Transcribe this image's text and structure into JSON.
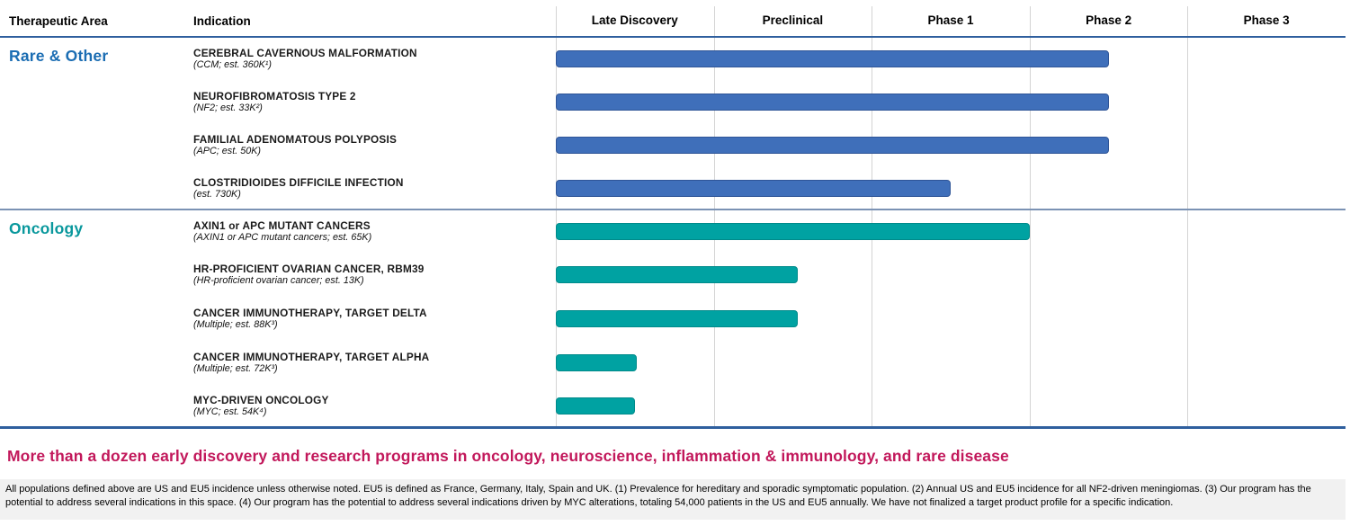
{
  "header": {
    "therapeutic_area": "Therapeutic Area",
    "indication": "Indication",
    "phases": [
      "Late Discovery",
      "Preclinical",
      "Phase 1",
      "Phase 2",
      "Phase 3"
    ]
  },
  "chart_data": {
    "type": "bar",
    "title": "Drug development pipeline by therapeutic area and phase",
    "phase_scale_note": "phase_end is measured in phase-column units: 1=end of Late Discovery, 2=end of Preclinical, 3=end of Phase 1, 4=end of Phase 2, 5=end of Phase 3",
    "sections": [
      {
        "name": "Rare & Other",
        "color": "#1b6db3",
        "bar_color": "#3f6fba",
        "bar_border": "#2f5597",
        "programs": [
          {
            "indication": "CEREBRAL CAVERNOUS MALFORMATION",
            "detail": "(CCM; est. 360K¹)",
            "phase_end": 3.5
          },
          {
            "indication": "NEUROFIBROMATOSIS TYPE 2",
            "detail": "(NF2; est. 33K²)",
            "phase_end": 3.5
          },
          {
            "indication": "FAMILIAL ADENOMATOUS POLYPOSIS",
            "detail": "(APC; est. 50K)",
            "phase_end": 3.5
          },
          {
            "indication": "CLOSTRIDIOIDES DIFFICILE INFECTION",
            "detail": "(est. 730K)",
            "phase_end": 2.5
          }
        ]
      },
      {
        "name": "Oncology",
        "color": "#0a989d",
        "bar_color": "#00a2a2",
        "bar_border": "#008a8a",
        "programs": [
          {
            "indication": "AXIN1 or APC MUTANT CANCERS",
            "detail": "(AXIN1 or APC mutant cancers; est. 65K)",
            "phase_end": 3.0
          },
          {
            "indication": "HR-PROFICIENT OVARIAN CANCER, RBM39",
            "detail": "(HR-proficient ovarian cancer; est. 13K)",
            "phase_end": 1.53
          },
          {
            "indication": "CANCER IMMUNOTHERAPY, TARGET DELTA",
            "detail": "(Multiple; est. 88K³)",
            "phase_end": 1.53
          },
          {
            "indication": "CANCER IMMUNOTHERAPY, TARGET ALPHA",
            "detail": "(Multiple; est. 72K³)",
            "phase_end": 0.51
          },
          {
            "indication": "MYC-DRIVEN ONCOLOGY",
            "detail": "(MYC; est. 54K⁴)",
            "phase_end": 0.5
          }
        ]
      }
    ]
  },
  "banner": "More than a dozen early discovery and research programs in oncology, neuroscience, inflammation & immunology, and rare disease",
  "footnote": "All populations defined above are US and EU5 incidence unless otherwise noted. EU5 is defined as France, Germany, Italy, Spain and UK. (1) Prevalence for hereditary and sporadic symptomatic population. (2) Annual US and EU5 incidence for all NF2-driven meningiomas. (3) Our program has the potential to address several indications in this space. (4) Our program has the potential to address several indications driven by MYC alterations, totaling 54,000 patients in the US and EU5 annually. We have not finalized a target product profile for a specific indication."
}
